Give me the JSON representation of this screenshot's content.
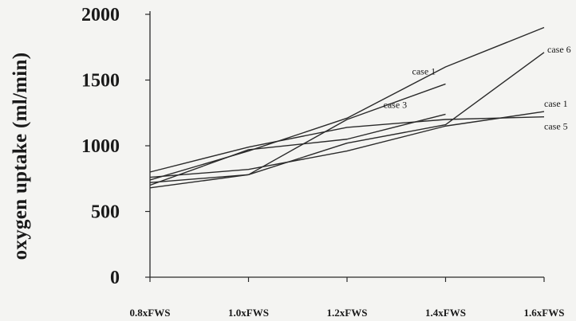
{
  "chart_data": {
    "type": "line",
    "xlabel": "",
    "ylabel": "oxygen uptake (ml/min)",
    "categories": [
      "0.8xFWS",
      "1.0xFWS",
      "1.2xFWS",
      "1.4xFWS",
      "1.6xFWS"
    ],
    "x": [
      0.8,
      1.0,
      1.2,
      1.4,
      1.6
    ],
    "ylim": [
      0,
      2000
    ],
    "yticks": [
      0,
      500,
      1000,
      1500,
      2000
    ],
    "ytick_labels": [
      "0",
      "500",
      "1000",
      "1500",
      "2000"
    ],
    "grid": false,
    "line_color": "#2a2a2a",
    "series": [
      {
        "name": "case 6",
        "values": [
          680,
          780,
          1020,
          1160,
          1710
        ]
      },
      {
        "name": "case 1",
        "values": [
          760,
          820,
          960,
          1150,
          1260
        ]
      },
      {
        "name": "case 5",
        "values": [
          800,
          990,
          1140,
          1200,
          1220
        ]
      },
      {
        "name": "case 3",
        "values": [
          700,
          970,
          1050,
          1240,
          null
        ]
      },
      {
        "name": "case 1",
        "values": [
          720,
          780,
          1200,
          1470,
          null
        ]
      },
      {
        "name": "",
        "values": [
          740,
          960,
          1210,
          1600,
          1900
        ]
      }
    ]
  }
}
